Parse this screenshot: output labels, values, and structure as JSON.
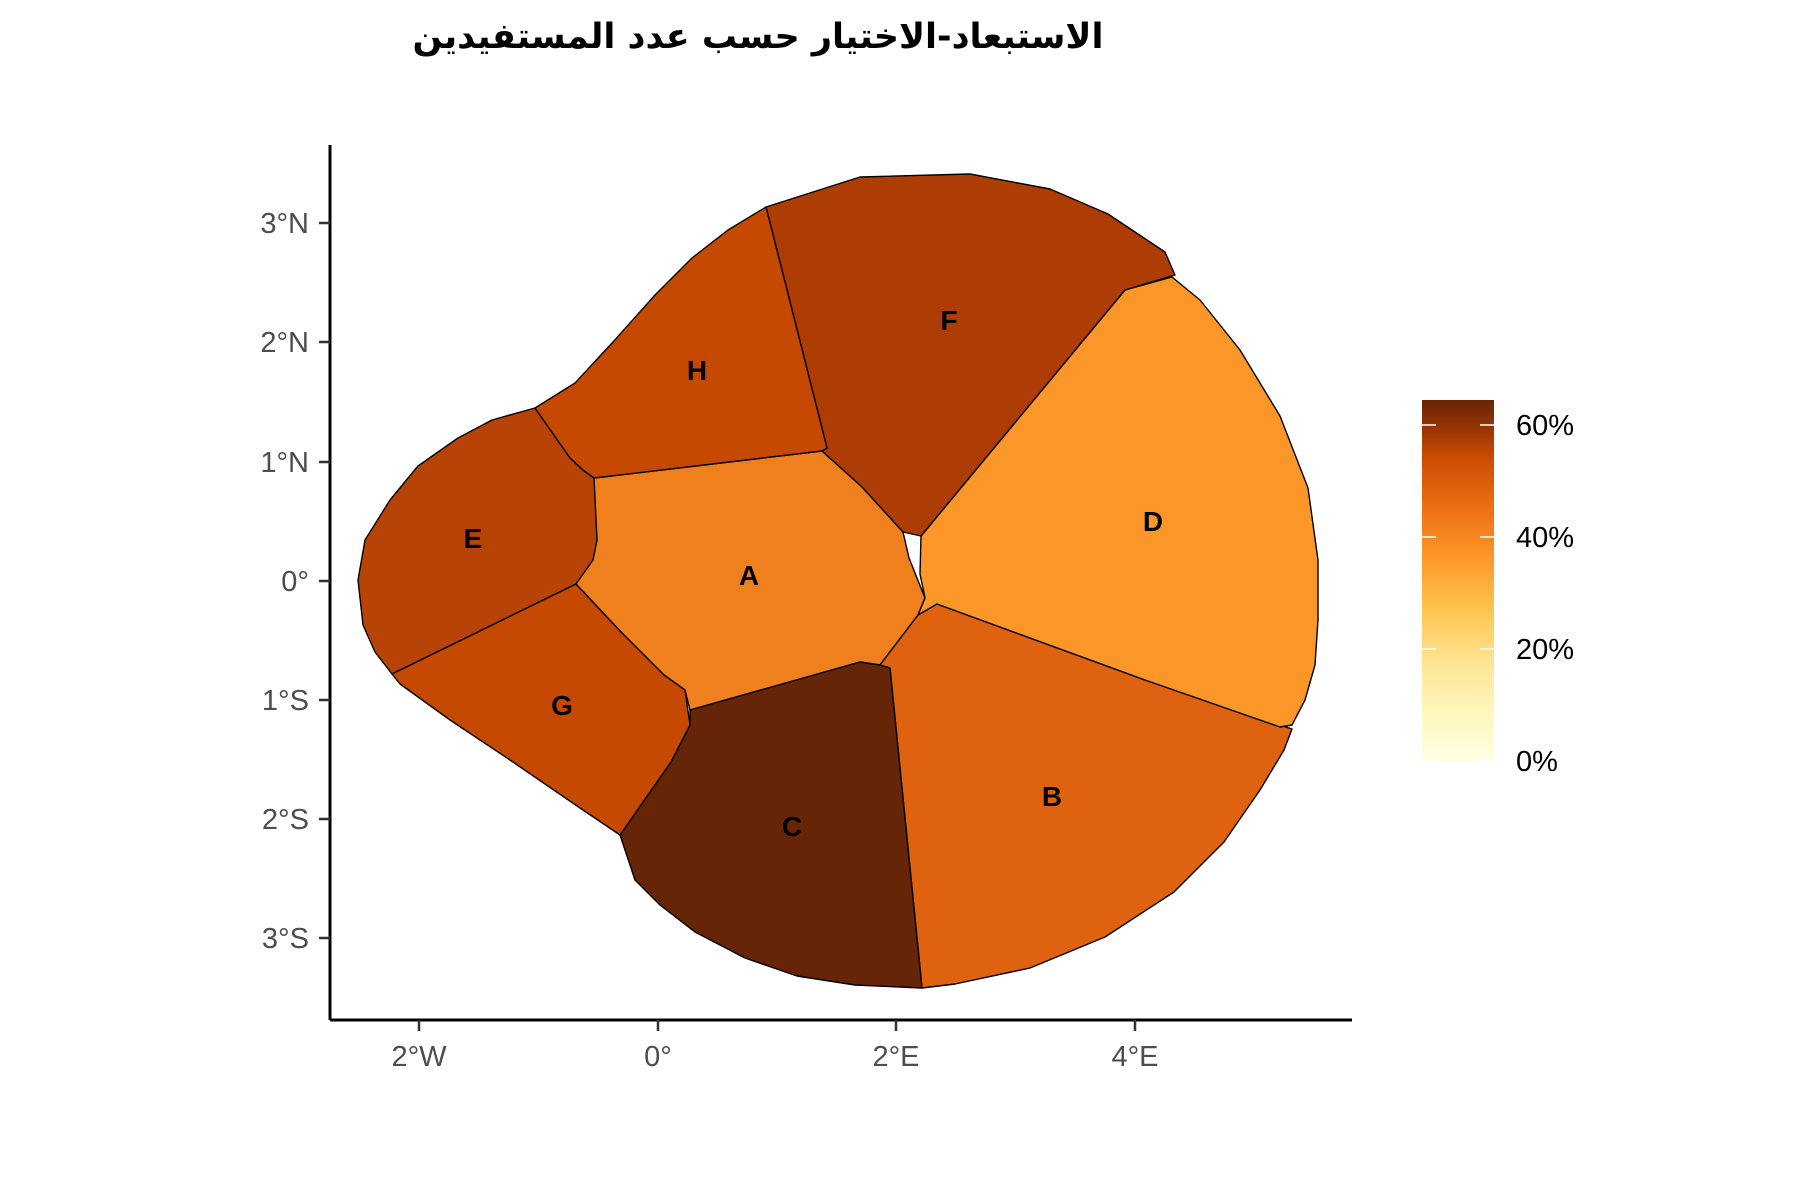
{
  "title": "الاستبعاد-الاختيار حسب عدد المستفيدين",
  "axes": {
    "x_ticks": [
      {
        "value": -2,
        "label": "2°W"
      },
      {
        "value": 0,
        "label": "0°"
      },
      {
        "value": 2,
        "label": "2°E"
      },
      {
        "value": 4,
        "label": "4°E"
      }
    ],
    "y_ticks": [
      {
        "value": 3,
        "label": "3°N"
      },
      {
        "value": 2,
        "label": "2°N"
      },
      {
        "value": 1,
        "label": "1°N"
      },
      {
        "value": 0,
        "label": "0°"
      },
      {
        "value": -1,
        "label": "1°S"
      },
      {
        "value": -2,
        "label": "2°S"
      },
      {
        "value": -3,
        "label": "3°S"
      }
    ]
  },
  "legend": {
    "ticks": [
      {
        "value": 60,
        "label": "60%"
      },
      {
        "value": 40,
        "label": "40%"
      },
      {
        "value": 20,
        "label": "20%"
      },
      {
        "value": 0,
        "label": "0%"
      }
    ],
    "range": [
      0,
      64
    ],
    "colors": [
      "#ffffe5",
      "#fee391",
      "#fec44f",
      "#fe9929",
      "#ec7014",
      "#cc4c02",
      "#993404",
      "#662506"
    ]
  },
  "regions": [
    {
      "label": "A",
      "value": 36,
      "color": "#f07f1e"
    },
    {
      "label": "B",
      "value": 42,
      "color": "#df6210"
    },
    {
      "label": "C",
      "value": 64,
      "color": "#662506"
    },
    {
      "label": "D",
      "value": 29,
      "color": "#fb9629"
    },
    {
      "label": "E",
      "value": 53,
      "color": "#b74306"
    },
    {
      "label": "F",
      "value": 55,
      "color": "#ad3c05"
    },
    {
      "label": "G",
      "value": 49,
      "color": "#c64902"
    },
    {
      "label": "H",
      "value": 49,
      "color": "#c64902"
    }
  ]
}
